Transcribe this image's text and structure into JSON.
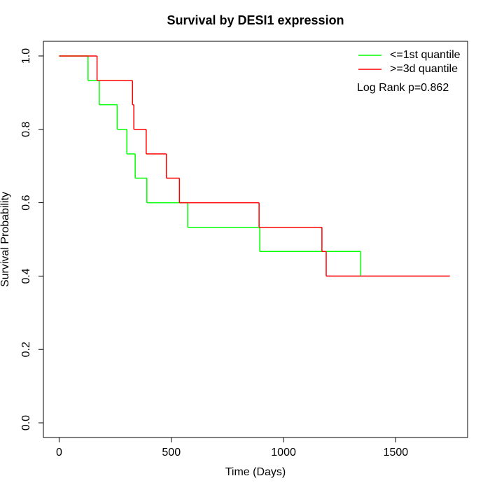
{
  "chart_data": {
    "type": "step",
    "title": "Survival by DESI1 expression",
    "x_label": "Time (Days)",
    "y_label": "Survival Probability",
    "annotation": "Log Rank p=0.862",
    "series": [
      {
        "name": "<=1st quantile",
        "color": "#00ff00",
        "x": [
          0,
          129,
          179,
          259,
          302,
          339,
          391,
          573,
          894,
          1344
        ],
        "values": [
          1.0,
          0.933,
          0.867,
          0.8,
          0.733,
          0.667,
          0.6,
          0.533,
          0.467,
          0.4
        ]
      },
      {
        "name": ">=3d quantile",
        "color": "#ff0000",
        "x": [
          0,
          169,
          327,
          333,
          388,
          478,
          536,
          891,
          1171,
          1190,
          1741
        ],
        "values": [
          1.0,
          0.933,
          0.867,
          0.8,
          0.733,
          0.667,
          0.6,
          0.533,
          0.467,
          0.4,
          0.4
        ]
      }
    ],
    "xlim": [
      -70,
      1820
    ],
    "xticks": [
      0,
      500,
      1000,
      1500
    ],
    "ylim": [
      -0.04,
      1.04
    ],
    "yticks": [
      {
        "value": 0,
        "label": "0.0"
      },
      0.2,
      0.4,
      0.6,
      0.8,
      {
        "value": 1,
        "label": "1.0"
      }
    ],
    "legend": "top-right"
  }
}
